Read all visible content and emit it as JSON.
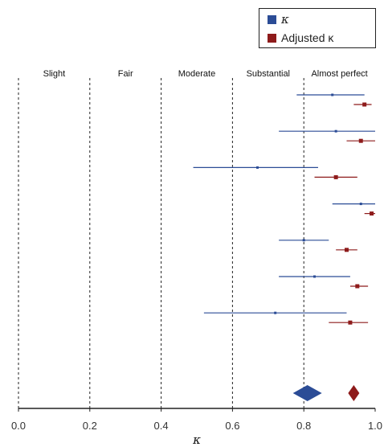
{
  "chart_data": {
    "type": "forest",
    "xlabel": "κ",
    "xlim": [
      0,
      1
    ],
    "xticks": [
      "0.0",
      "0.2",
      "0.4",
      "0.6",
      "0.8",
      "1.0"
    ],
    "xtick_values": [
      0,
      0.2,
      0.4,
      0.6,
      0.8,
      1.0
    ],
    "reference_lines": [
      0.2,
      0.4,
      0.6,
      0.8
    ],
    "grid": false,
    "legend_position": "top-right",
    "bands": [
      {
        "label": "Slight",
        "range": [
          0.0,
          0.2
        ]
      },
      {
        "label": "Fair",
        "range": [
          0.2,
          0.4
        ]
      },
      {
        "label": "Moderate",
        "range": [
          0.4,
          0.6
        ]
      },
      {
        "label": "Substantial",
        "range": [
          0.6,
          0.8
        ]
      },
      {
        "label": "Almost perfect",
        "range": [
          0.8,
          1.0
        ]
      }
    ],
    "series": [
      {
        "name": "κ",
        "color": "#2b4c96",
        "estimates": [
          {
            "value": 0.88,
            "lower": 0.78,
            "upper": 0.97
          },
          {
            "value": 0.89,
            "lower": 0.73,
            "upper": 1.0
          },
          {
            "value": 0.67,
            "lower": 0.49,
            "upper": 0.84
          },
          {
            "value": 0.96,
            "lower": 0.88,
            "upper": 1.0
          },
          {
            "value": 0.8,
            "lower": 0.73,
            "upper": 0.87
          },
          {
            "value": 0.83,
            "lower": 0.73,
            "upper": 0.93
          },
          {
            "value": 0.72,
            "lower": 0.52,
            "upper": 0.92
          }
        ],
        "pooled": 0.81
      },
      {
        "name": "Adjusted κ",
        "color": "#8e1b1b",
        "estimates": [
          {
            "value": 0.97,
            "lower": 0.94,
            "upper": 0.99
          },
          {
            "value": 0.96,
            "lower": 0.92,
            "upper": 1.0
          },
          {
            "value": 0.89,
            "lower": 0.83,
            "upper": 0.95
          },
          {
            "value": 0.99,
            "lower": 0.97,
            "upper": 1.0
          },
          {
            "value": 0.92,
            "lower": 0.89,
            "upper": 0.95
          },
          {
            "value": 0.95,
            "lower": 0.93,
            "upper": 0.98
          },
          {
            "value": 0.93,
            "lower": 0.87,
            "upper": 0.98
          }
        ],
        "pooled": 0.94
      }
    ]
  }
}
